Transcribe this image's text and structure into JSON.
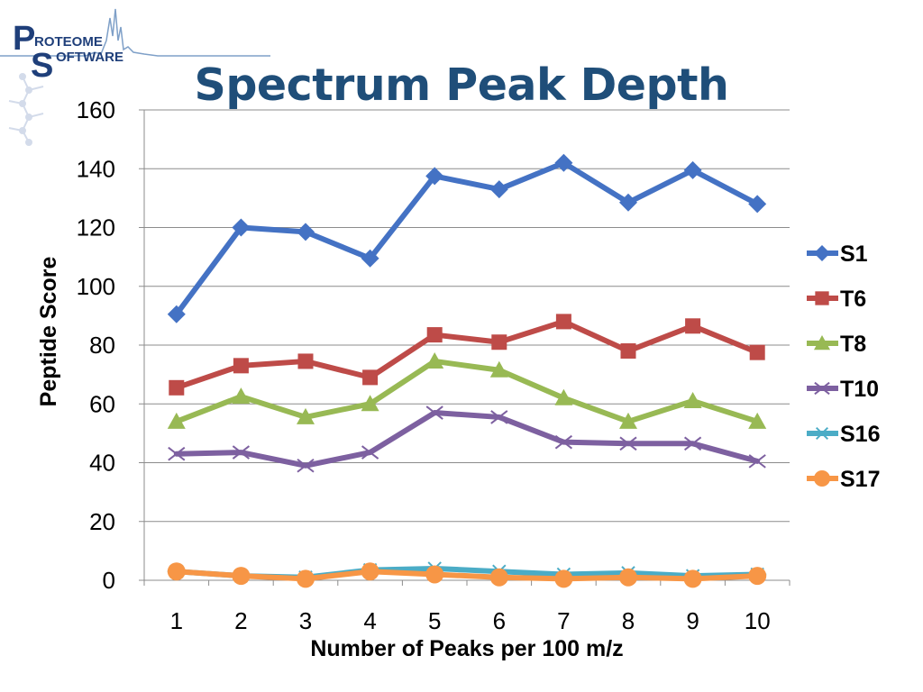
{
  "logo": {
    "brand_letter_top": "P",
    "brand_word_top": "ROTEOME",
    "brand_letter_bottom": "S",
    "brand_word_bottom": "OFTWARE"
  },
  "slide": {
    "title": "Spectrum Peak Depth"
  },
  "chart_data": {
    "type": "line",
    "title": "",
    "xlabel": "Number of Peaks per 100 m/z",
    "ylabel": "Peptide Score",
    "categories": [
      "1",
      "2",
      "3",
      "4",
      "5",
      "6",
      "7",
      "8",
      "9",
      "10"
    ],
    "ylim": [
      0,
      160
    ],
    "yticks": [
      "0",
      "20",
      "40",
      "60",
      "80",
      "100",
      "120",
      "140",
      "160"
    ],
    "grid": true,
    "legend_position": "right",
    "series": [
      {
        "name": "S1",
        "color": "#4472c4",
        "marker": "diamond",
        "values": [
          90.5,
          120,
          118.5,
          109.5,
          137.5,
          133,
          142,
          128.5,
          139.5,
          128
        ]
      },
      {
        "name": "T6",
        "color": "#be4b48",
        "marker": "square",
        "values": [
          65.5,
          73,
          74.5,
          69,
          83.5,
          81,
          88,
          78,
          86.5,
          77.5
        ]
      },
      {
        "name": "T8",
        "color": "#98b954",
        "marker": "triangle",
        "values": [
          54,
          62.5,
          55.5,
          60,
          74.5,
          71.5,
          62,
          54,
          61,
          54
        ]
      },
      {
        "name": "T10",
        "color": "#7d60a0",
        "marker": "x",
        "values": [
          43,
          43.5,
          39,
          43.5,
          57,
          55.5,
          47,
          46.5,
          46.5,
          40.5
        ]
      },
      {
        "name": "S16",
        "color": "#4bacc6",
        "marker": "star",
        "values": [
          3,
          1.5,
          1,
          3.5,
          4,
          3,
          2,
          2.5,
          1.5,
          2
        ]
      },
      {
        "name": "S17",
        "color": "#f79646",
        "marker": "circle",
        "values": [
          3,
          1.5,
          0.5,
          3,
          2,
          1,
          0.5,
          1,
          0.5,
          1.5
        ]
      }
    ]
  }
}
